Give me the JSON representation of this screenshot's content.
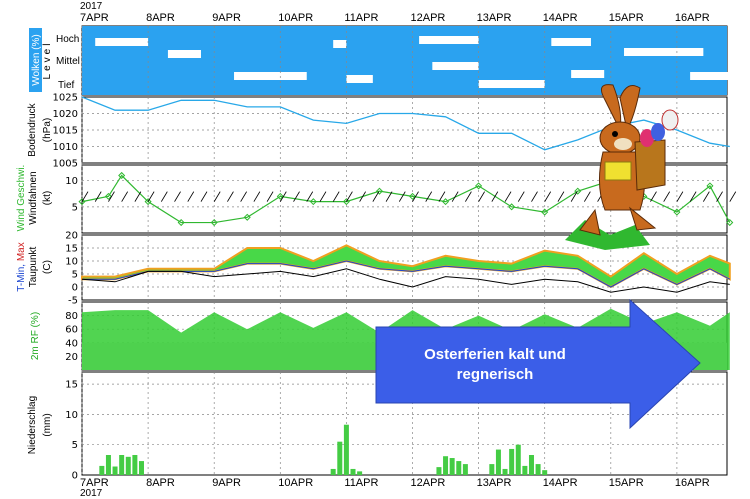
{
  "chart_data": {
    "type": "meteogram",
    "year": "2017",
    "dates": [
      "7APR",
      "8APR",
      "9APR",
      "10APR",
      "11APR",
      "12APR",
      "13APR",
      "14APR",
      "15APR",
      "16APR"
    ],
    "panels": {
      "clouds": {
        "ylabel": "Wolken (%)",
        "level_label": "Level",
        "levels": [
          "Hoch",
          "Mittel",
          "Tief"
        ]
      },
      "pressure": {
        "ylabel_1": "Bodendruck",
        "ylabel_2": "(hPa)",
        "ylim": [
          1005,
          1025
        ],
        "ticks": [
          1025,
          1020,
          1015,
          1010,
          1005
        ],
        "x": [
          0,
          0.5,
          1,
          1.5,
          2,
          2.5,
          3,
          3.5,
          4,
          4.5,
          5,
          5.5,
          6,
          6.5,
          7,
          7.5,
          8,
          8.5,
          9,
          9.5,
          9.8
        ],
        "values": [
          1025,
          1021,
          1021,
          1024,
          1024,
          1022,
          1022,
          1018,
          1017,
          1020,
          1020,
          1019,
          1014,
          1014,
          1009,
          1012,
          1016,
          1018,
          1015,
          1011,
          1010
        ]
      },
      "wind": {
        "ylabel_1": "Wind Geschwi.",
        "ylabel_2": "Windfahnen",
        "ylabel_3": "(kt)",
        "ylim": [
          0,
          13
        ],
        "ticks": [
          10,
          5
        ],
        "x": [
          0,
          0.4,
          0.6,
          1,
          1.5,
          2,
          2.5,
          3,
          3.5,
          4,
          4.5,
          5,
          5.5,
          6,
          6.5,
          7,
          7.5,
          8,
          8.5,
          9,
          9.5,
          9.8
        ],
        "values": [
          6,
          7,
          11,
          6,
          2,
          2,
          3,
          7,
          6,
          6,
          8,
          7,
          6,
          9,
          5,
          4,
          8,
          10,
          7,
          4,
          9,
          2
        ]
      },
      "temperature": {
        "ylabel_1": "T-Min, Max",
        "ylabel_2": "Taupunkt",
        "ylabel_3": "(C)",
        "ylim": [
          -5,
          20
        ],
        "ticks": [
          20,
          15,
          10,
          5,
          0,
          -5
        ],
        "x": [
          0,
          0.5,
          1,
          1.3,
          1.5,
          2,
          2.5,
          3,
          3.5,
          4,
          4.5,
          5,
          5.5,
          6,
          6.5,
          7,
          7.5,
          8,
          8.5,
          9,
          9.5,
          9.8
        ],
        "max": [
          4,
          4,
          7,
          7,
          7,
          7,
          15,
          15,
          10,
          16,
          10,
          8,
          12,
          10,
          9,
          14,
          12,
          4,
          13,
          5,
          12,
          9
        ],
        "min": [
          3,
          3,
          6,
          6,
          6,
          6,
          9,
          9,
          7,
          10,
          7,
          6,
          8,
          7,
          6,
          8,
          7,
          0,
          7,
          1,
          7,
          3
        ],
        "dewpoint": [
          3,
          2,
          6,
          6,
          6,
          4,
          5,
          6,
          4,
          7,
          3,
          0,
          4,
          3,
          1,
          3,
          2,
          -2,
          0,
          -2,
          2,
          1
        ]
      },
      "humidity": {
        "ylabel": "2m RF (%)",
        "ylim": [
          0,
          100
        ],
        "ticks": [
          80,
          60,
          40,
          20
        ],
        "x": [
          0,
          0.5,
          1,
          1.5,
          2,
          2.5,
          3,
          3.5,
          4,
          4.5,
          5,
          5.5,
          6,
          6.5,
          7,
          7.5,
          8,
          8.5,
          9,
          9.5,
          9.8
        ],
        "values": [
          85,
          88,
          88,
          55,
          85,
          60,
          85,
          62,
          85,
          55,
          88,
          60,
          80,
          58,
          82,
          62,
          90,
          68,
          85,
          65,
          85
        ]
      },
      "precipitation": {
        "ylabel_1": "Niederschlag",
        "ylabel_2": "(mm)",
        "ylim": [
          0,
          17
        ],
        "ticks": [
          15,
          10,
          5,
          0
        ],
        "x": [
          0.3,
          0.4,
          0.5,
          0.6,
          0.7,
          0.8,
          0.9,
          3.8,
          3.9,
          4.0,
          4.1,
          4.2,
          5.4,
          5.5,
          5.6,
          5.7,
          5.8,
          6.2,
          6.3,
          6.4,
          6.5,
          6.6,
          6.7,
          6.8,
          6.9,
          7.0
        ],
        "values": [
          1.5,
          3.3,
          1.4,
          3.3,
          3.0,
          3.3,
          2.3,
          1.0,
          5.5,
          8.3,
          1.0,
          0.6,
          1.3,
          3.1,
          2.8,
          2.3,
          1.8,
          1.8,
          4.2,
          1.0,
          4.3,
          5.0,
          1.5,
          3.3,
          1.8,
          0.8
        ]
      }
    }
  },
  "annotation": {
    "text_line1": "Osterferien kalt und",
    "text_line2": "regnerisch",
    "color": "#3b5ee8"
  },
  "colors": {
    "cloud_bg": "#2ba2f0",
    "pressure_line": "#28a8e8",
    "wind_line": "#30b830",
    "temp_fill": "#48d848",
    "temp_max": "#f0a020",
    "dewpoint": "#000000",
    "humidity_fill": "#33cc33",
    "precip_bar": "#44cc44"
  }
}
